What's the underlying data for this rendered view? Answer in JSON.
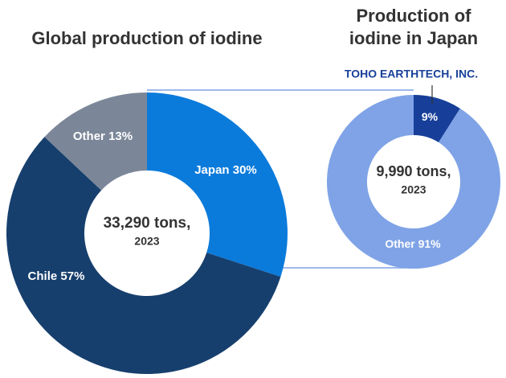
{
  "chart_data": [
    {
      "type": "donut",
      "title": "Global production of iodine",
      "categories": [
        "Japan",
        "Chile",
        "Other"
      ],
      "values": [
        30,
        57,
        13
      ],
      "value_labels": [
        "30%",
        "57%",
        "13%"
      ],
      "colors": [
        "#0b7bdb",
        "#163f6d",
        "#7b8799"
      ],
      "center_label": "33,290 tons,",
      "center_sublabel": "2023"
    },
    {
      "type": "donut",
      "title": "Production of iodine in Japan",
      "categories": [
        "TOHO EARTHTECH, INC.",
        "Other"
      ],
      "values": [
        9,
        91
      ],
      "value_labels": [
        "9%",
        "91%"
      ],
      "colors": [
        "#173f99",
        "#7fa3e6"
      ],
      "center_label": "9,990 tons,",
      "center_sublabel": "2023"
    }
  ]
}
